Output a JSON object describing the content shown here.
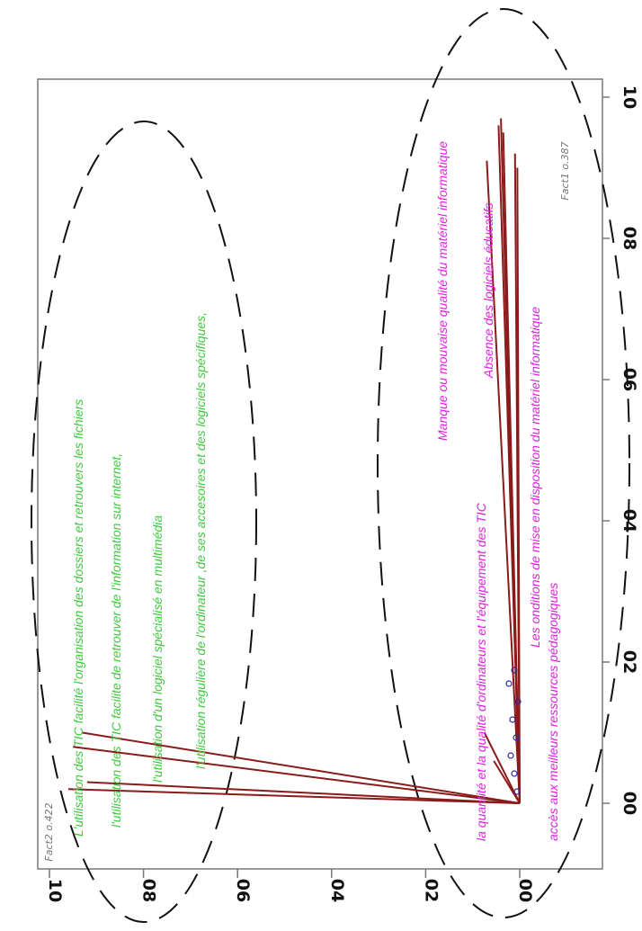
{
  "chart_data": {
    "type": "scatter",
    "xlabel": "Fact1 o.387",
    "ylabel": "Fact2 o.422",
    "xlim": [
      0,
      1.0
    ],
    "ylim": [
      0,
      1.0
    ],
    "x_ticks": [
      "0.0",
      "0.2",
      "0.4",
      "0.6",
      "0.8",
      "1.0"
    ],
    "y_ticks": [
      "0.0",
      "0.2",
      "0.4",
      "0.6",
      "0.8",
      "1.0"
    ],
    "rotation": "plot rotated 90 degrees clockwise",
    "grid": false,
    "loadings": [
      {
        "x": 0.02,
        "y": 0.96
      },
      {
        "x": 0.08,
        "y": 0.95
      },
      {
        "x": 0.1,
        "y": 0.93
      },
      {
        "x": 0.03,
        "y": 0.92
      },
      {
        "x": 0.1,
        "y": 0.075
      },
      {
        "x": 0.06,
        "y": 0.055
      },
      {
        "x": 0.91,
        "y": 0.07
      },
      {
        "x": 0.96,
        "y": 0.045
      },
      {
        "x": 0.97,
        "y": 0.04
      },
      {
        "x": 0.95,
        "y": 0.035
      },
      {
        "x": 0.92,
        "y": 0.01
      },
      {
        "x": 0.9,
        "y": 0.005
      }
    ],
    "group_annotations": {
      "factor2": [
        "L'utilisation des TIC facilité l'organisation des dossiers et retrouvers les fichiers",
        "l'utilisation des TIC facilite de retrouver de l'information sur internet,",
        "l'utilisation d'un logiciel spécialisé en multimédia",
        "l'utilisation régulière de l'ordinateur ,de ses accesoires et des logiciels spécifiques,"
      ],
      "factor1": [
        "Manque ou mouvaise qualité du matériel informatique",
        "Absence des logiciels éducatifs",
        "la quantité et la qualité d'ordinateurs et l'équipement des TIC",
        "Les onditions de mise en disposition du matériel informatique",
        "accès aux meilleurs ressources pédagogiques"
      ]
    }
  },
  "colors": {
    "loading_line": "#8b1a1a",
    "green_text": "#3ec93e",
    "magenta_text": "#e020e0",
    "marker": "#2a2aa0"
  }
}
